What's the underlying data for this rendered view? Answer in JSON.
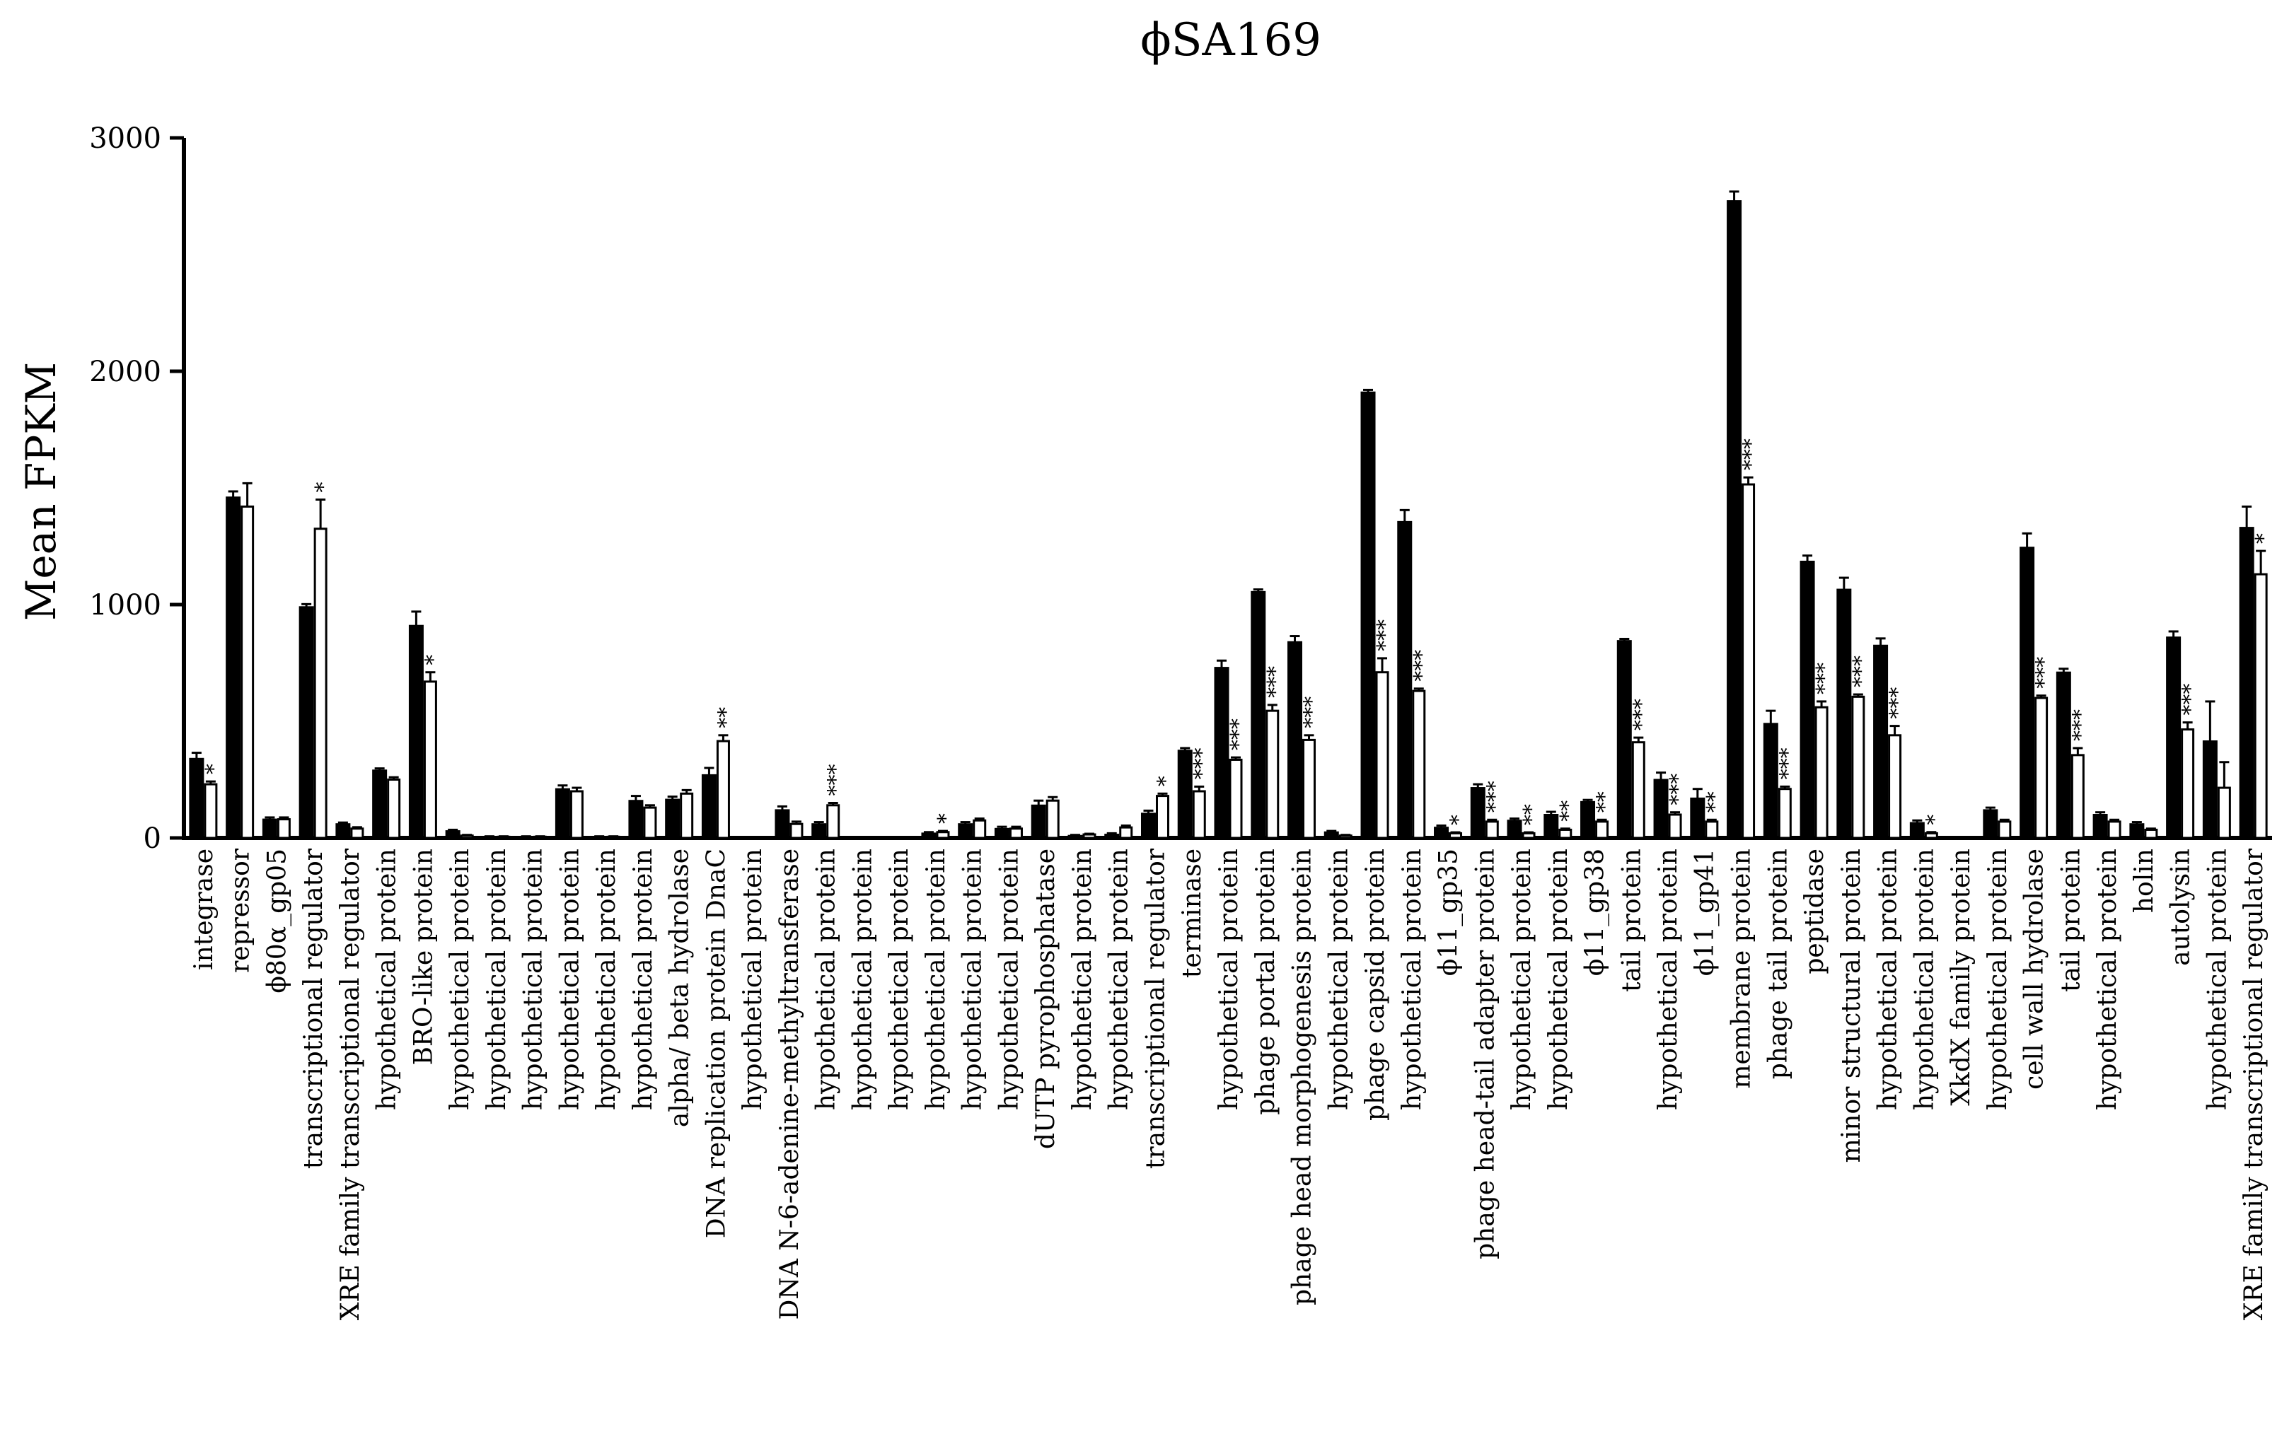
{
  "chart_data": {
    "type": "bar",
    "title": "ϕSA169",
    "xlabel": "",
    "ylabel": "Mean FPKM",
    "ylim": [
      0,
      3000
    ],
    "yticks": [
      "0",
      "1000",
      "2000",
      "3000"
    ],
    "grid": false,
    "legend": "none",
    "colors": {
      "series1": "#000000",
      "series2": "#ffffff",
      "axis": "#000000"
    },
    "categories": [
      "integrase",
      "repressor",
      "ϕ80α_gp05",
      "transcriptional regulator",
      "XRE family transcriptional regulator",
      "hypothetical protein",
      "BRO-like protein",
      "hypothetical protein",
      "hypothetical protein",
      "hypothetical protein",
      "hypothetical protein",
      "hypothetical protein",
      "hypothetical protein",
      "alpha/ beta hydrolase",
      "DNA replication protein DnaC",
      "hypothetical protein",
      "DNA N-6-adenine-methyltransferase",
      "hypothetical protein",
      "hypothetical protein",
      "hypothetical protein",
      "hypothetical protein",
      "hypothetical protein",
      "hypothetical protein",
      "dUTP pyrophosphatase",
      "hypothetical protein",
      "hypothetical protein",
      "transcriptional regulator",
      "terminase",
      "hypothetical protein",
      "phage portal protein",
      "phage head morphogenesis protein",
      "hypothetical protein",
      "phage capsid protein",
      "hypothetical protein",
      "ϕ11_gp35",
      "phage head-tail adapter protein",
      "hypothetical protein",
      "hypothetical protein",
      "ϕ11_gp38",
      "tail protein",
      "hypothetical protein",
      "ϕ11_gp41",
      "membrane protein",
      "phage tail protein",
      "peptidase",
      "minor structural protein",
      "hypothetical protein",
      "hypothetical protein",
      "XkdX family protein",
      "hypothetical protein",
      "cell wall hydrolase",
      "tail protein",
      "hypothetical protein",
      "holin",
      "autolysin",
      "hypothetical protein",
      "XRE family transcriptional regulator"
    ],
    "series": [
      {
        "name": "series 1",
        "color": "#000000",
        "values": [
          340,
          1460,
          80,
          990,
          60,
          290,
          910,
          30,
          5,
          5,
          210,
          5,
          160,
          165,
          270,
          0,
          120,
          60,
          0,
          0,
          20,
          60,
          40,
          140,
          10,
          15,
          105,
          375,
          730,
          1055,
          840,
          25,
          1910,
          1355,
          45,
          215,
          75,
          100,
          155,
          845,
          250,
          170,
          2730,
          490,
          1185,
          1065,
          825,
          65,
          0,
          120,
          1245,
          710,
          100,
          60,
          860,
          415,
          1330
        ],
        "errors": [
          25,
          25,
          8,
          12,
          6,
          8,
          60,
          5,
          2,
          2,
          15,
          2,
          20,
          12,
          30,
          0,
          15,
          8,
          0,
          0,
          5,
          8,
          8,
          20,
          3,
          5,
          12,
          10,
          30,
          10,
          25,
          5,
          10,
          50,
          8,
          15,
          8,
          12,
          8,
          8,
          30,
          40,
          40,
          55,
          25,
          50,
          30,
          10,
          0,
          10,
          60,
          15,
          10,
          8,
          25,
          170,
          90
        ],
        "labels": [],
        "error_labels": []
      },
      {
        "name": "series 2",
        "color": "#ffffff",
        "values": [
          230,
          1420,
          80,
          1325,
          40,
          250,
          670,
          10,
          5,
          5,
          200,
          5,
          130,
          190,
          415,
          0,
          60,
          140,
          0,
          0,
          25,
          75,
          40,
          160,
          15,
          45,
          180,
          200,
          335,
          545,
          420,
          10,
          710,
          630,
          20,
          70,
          20,
          35,
          70,
          410,
          100,
          70,
          1515,
          210,
          560,
          605,
          440,
          20,
          0,
          70,
          600,
          355,
          70,
          35,
          465,
          215,
          1130
        ],
        "errors": [
          12,
          100,
          8,
          125,
          6,
          10,
          40,
          3,
          2,
          2,
          15,
          2,
          10,
          15,
          25,
          0,
          10,
          10,
          0,
          0,
          5,
          8,
          8,
          15,
          3,
          8,
          10,
          20,
          10,
          25,
          20,
          3,
          60,
          10,
          4,
          8,
          4,
          5,
          8,
          20,
          10,
          8,
          30,
          10,
          25,
          10,
          40,
          5,
          0,
          8,
          10,
          30,
          8,
          5,
          30,
          110,
          100
        ],
        "significance": [
          "*",
          "",
          "",
          "*",
          "",
          "",
          "*",
          "",
          "",
          "",
          "",
          "",
          "",
          "",
          "**",
          "",
          "",
          "***",
          "",
          "",
          "*",
          "",
          "",
          "",
          "",
          "",
          "*",
          "***",
          "***",
          "***",
          "***",
          "",
          "***",
          "***",
          "*",
          "***",
          "**",
          "**",
          "**",
          "***",
          "***",
          "**",
          "***",
          "***",
          "***",
          "***",
          "***",
          "*",
          "",
          "",
          "***",
          "***",
          "",
          "",
          "***",
          "",
          "*"
        ]
      }
    ]
  }
}
